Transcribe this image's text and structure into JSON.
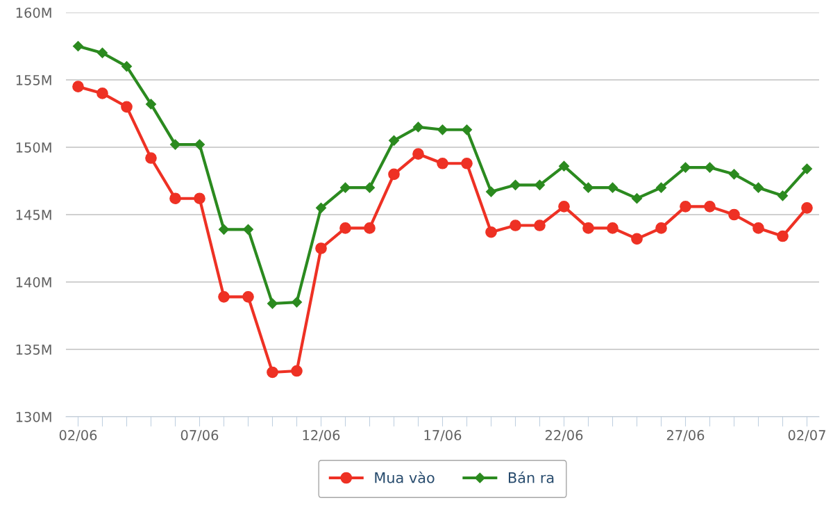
{
  "chart_data": {
    "type": "line",
    "categories": [
      "02/06",
      null,
      null,
      null,
      null,
      "07/06",
      null,
      null,
      null,
      null,
      "12/06",
      null,
      null,
      null,
      null,
      "17/06",
      null,
      null,
      null,
      null,
      "22/06",
      null,
      null,
      null,
      null,
      "27/06",
      null,
      null,
      null,
      null,
      "02/07"
    ],
    "series": [
      {
        "name": "Mua vào",
        "color": "#ee3124",
        "marker": "circle",
        "values": [
          154.5,
          154.0,
          153.0,
          149.2,
          146.2,
          146.2,
          138.9,
          138.9,
          133.3,
          133.4,
          142.5,
          144.0,
          144.0,
          148.0,
          149.5,
          148.8,
          148.8,
          143.7,
          144.2,
          144.2,
          145.6,
          144.0,
          144.0,
          143.2,
          144.0,
          145.6,
          145.6,
          145.0,
          144.0,
          143.4,
          145.5
        ]
      },
      {
        "name": "Bán ra",
        "color": "#2b8a1f",
        "marker": "diamond",
        "values": [
          157.5,
          157.0,
          156.0,
          153.2,
          150.2,
          150.2,
          143.9,
          143.9,
          138.4,
          138.5,
          145.5,
          147.0,
          147.0,
          150.5,
          151.5,
          151.3,
          151.3,
          146.7,
          147.2,
          147.2,
          148.6,
          147.0,
          147.0,
          146.2,
          147.0,
          148.5,
          148.5,
          148.0,
          147.0,
          146.4,
          148.4
        ]
      }
    ],
    "ylim": [
      130,
      160
    ],
    "yticks": [
      {
        "value": 130,
        "label": "130M"
      },
      {
        "value": 135,
        "label": "135M"
      },
      {
        "value": 140,
        "label": "140M"
      },
      {
        "value": 145,
        "label": "145M"
      },
      {
        "value": 150,
        "label": "150M"
      },
      {
        "value": 155,
        "label": "155M"
      },
      {
        "value": 160,
        "label": "160M"
      }
    ],
    "grid": "y",
    "legend": "bottom"
  }
}
